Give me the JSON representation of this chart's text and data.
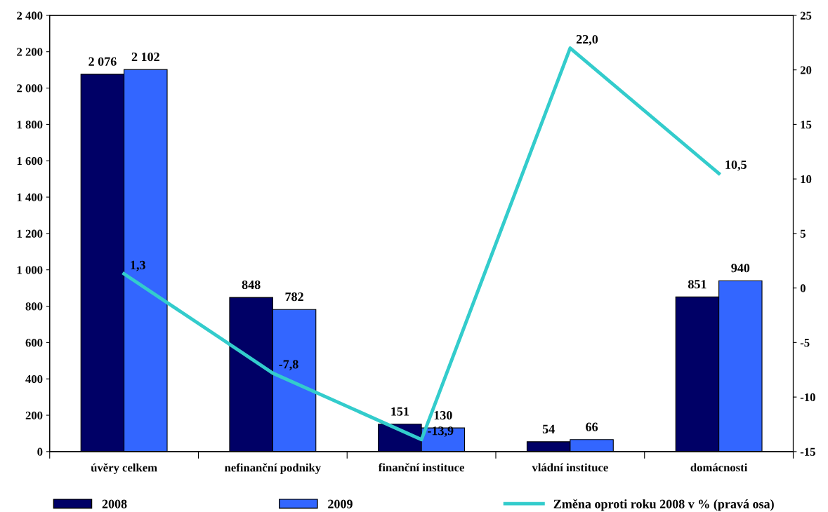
{
  "chart_data": {
    "type": "bar",
    "categories": [
      "úvěry celkem",
      "nefinanční podniky",
      "finanční instituce",
      "vládní instituce",
      "domácnosti"
    ],
    "series": [
      {
        "name": "2008",
        "color": "#000066",
        "values": [
          2076,
          848,
          151,
          54,
          851
        ],
        "value_labels": [
          "2 076",
          "848",
          "151",
          "54",
          "851"
        ]
      },
      {
        "name": "2009",
        "color": "#3366ff",
        "values": [
          2102,
          782,
          130,
          66,
          940
        ],
        "value_labels": [
          "2 102",
          "782",
          "130",
          "66",
          "940"
        ]
      },
      {
        "name": "Změna oproti roku 2008 v % (pravá osa)",
        "type": "line",
        "axis": "y2",
        "color": "#33cccc",
        "values": [
          1.3,
          -7.8,
          -13.9,
          22.0,
          10.5
        ],
        "value_labels": [
          "1,3",
          "-7,8",
          "-13,9",
          "22,0",
          "10,5"
        ]
      }
    ],
    "ylim": [
      0,
      2400
    ],
    "yticks": [
      0,
      200,
      400,
      600,
      800,
      {
        "value": 1000,
        "label": "1 000"
      },
      {
        "value": 1200,
        "label": "1 200"
      },
      {
        "value": 1400,
        "label": "1 400"
      },
      {
        "value": 1600,
        "label": "1 600"
      },
      {
        "value": 1800,
        "label": "1 800"
      },
      {
        "value": 2000,
        "label": "2 000"
      },
      {
        "value": 2200,
        "label": "2 200"
      },
      {
        "value": 2400,
        "label": "2 400"
      }
    ],
    "y2lim": [
      -15,
      25
    ],
    "y2ticks": [
      -15,
      -10,
      -5,
      0,
      5,
      10,
      15,
      20,
      25
    ],
    "grid": false,
    "legend": "bottom",
    "marker": "none",
    "line_style": "solid"
  }
}
